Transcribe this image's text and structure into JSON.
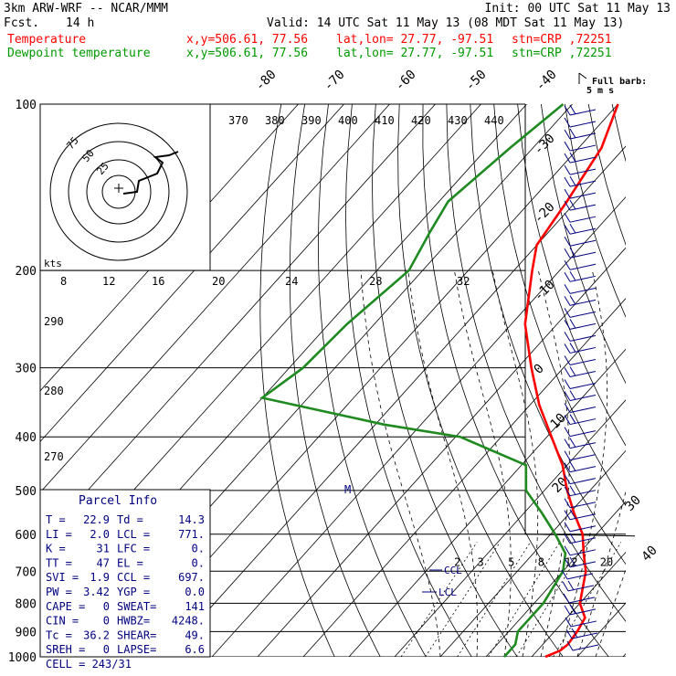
{
  "header": {
    "model": "3km ARW-WRF -- NCAR/MMM",
    "init": "Init: 00 UTC Sat 11 May 13",
    "fcst_label": "Fcst.",
    "fcst_value": "14 h",
    "valid": "Valid: 14 UTC Sat 11 May 13 (08 MDT Sat 11 May 13)"
  },
  "legend": [
    {
      "name": "Temperature",
      "coord": "x,y=506.61, 77.56",
      "latlon": "lat,lon= 27.77, -97.51",
      "stn": "stn=CRP ,72251",
      "color": "#ff0000"
    },
    {
      "name": "Dewpoint temperature",
      "coord": "x,y=506.61, 77.56",
      "latlon": "lat,lon= 27.77, -97.51",
      "stn": "stn=CRP ,72251",
      "color": "#009900"
    }
  ],
  "colors": {
    "temperature": "#ff0000",
    "dewpoint": "#1f8a1f",
    "text": "#000000",
    "info": "#000080",
    "barb": "#000080"
  },
  "barb_key": {
    "title": "Full barb:",
    "value": "5 m s",
    "icon": "wind-barb-icon"
  },
  "chart_data": {
    "type": "line",
    "title": "",
    "y_axis": "pressure (hPa), log scale",
    "pressure_ticks": [
      100,
      200,
      300,
      400,
      500,
      600,
      700,
      800,
      900,
      1000
    ],
    "temp_ticks_top": [
      -80,
      -70,
      -60,
      -50,
      -40
    ],
    "temp_ticks_side": [
      -30,
      -20,
      -10,
      0,
      10,
      20,
      30,
      40
    ],
    "theta_labels": [
      370,
      380,
      390,
      400,
      410,
      420,
      430,
      440
    ],
    "theta_left_labels": [
      290,
      280,
      270
    ],
    "mixing_ratio_labels": [
      2,
      3,
      5,
      8,
      12,
      20
    ],
    "series": [
      {
        "name": "Temperature",
        "points": [
          [
            100,
            -70
          ],
          [
            120,
            -65
          ],
          [
            150,
            -62
          ],
          [
            180,
            -60
          ],
          [
            200,
            -56
          ],
          [
            250,
            -47
          ],
          [
            300,
            -37
          ],
          [
            350,
            -28
          ],
          [
            400,
            -19
          ],
          [
            450,
            -11
          ],
          [
            500,
            -5
          ],
          [
            550,
            1
          ],
          [
            600,
            7
          ],
          [
            650,
            11
          ],
          [
            700,
            15
          ],
          [
            800,
            20
          ],
          [
            850,
            24
          ],
          [
            900,
            25
          ],
          [
            950,
            25.5
          ],
          [
            975,
            25
          ],
          [
            1000,
            23
          ]
        ]
      },
      {
        "name": "Dewpoint temperature",
        "points": [
          [
            100,
            -82
          ],
          [
            120,
            -85
          ],
          [
            150,
            -88
          ],
          [
            170,
            -86
          ],
          [
            200,
            -83
          ],
          [
            250,
            -86
          ],
          [
            300,
            -87
          ],
          [
            340,
            -90
          ],
          [
            380,
            -58
          ],
          [
            400,
            -39
          ],
          [
            450,
            -19
          ],
          [
            500,
            -14
          ],
          [
            550,
            -6
          ],
          [
            600,
            1
          ],
          [
            650,
            7
          ],
          [
            700,
            10
          ],
          [
            800,
            12
          ],
          [
            900,
            12
          ],
          [
            950,
            14
          ],
          [
            1000,
            14
          ]
        ]
      }
    ],
    "hodograph": {
      "rings_label": [
        "75",
        "50",
        "25"
      ],
      "units": "kts",
      "speed_ticks": [
        "8",
        "12",
        "16",
        "20",
        "24",
        "28",
        "32"
      ]
    },
    "wind_barbs_count": 46,
    "labels": {
      "lcl": "LCL",
      "ccl": "CCL",
      "max_wind": "M"
    }
  },
  "parcel_info": {
    "title": "Parcel Info",
    "rows": [
      [
        "T  =",
        "22.9",
        "Td =",
        "14.3"
      ],
      [
        "LI =",
        "2.0",
        "LCL =",
        "771."
      ],
      [
        "K  =",
        "31",
        "LFC =",
        "0."
      ],
      [
        "TT =",
        "47",
        "EL  =",
        "0."
      ],
      [
        "SVI =",
        "1.9",
        "CCL =",
        "697."
      ],
      [
        "PW =",
        "3.42",
        "YGP =",
        "0.0"
      ],
      [
        "CAPE =",
        "0",
        "SWEAT=",
        "141"
      ],
      [
        "CIN  =",
        "0",
        "HWBZ=",
        "4248."
      ],
      [
        "Tc  =",
        "36.2",
        "SHEAR=",
        "49."
      ],
      [
        "SREH =",
        "0",
        "LAPSE=",
        "6.6"
      ]
    ],
    "cell": "CELL = 243/31"
  }
}
